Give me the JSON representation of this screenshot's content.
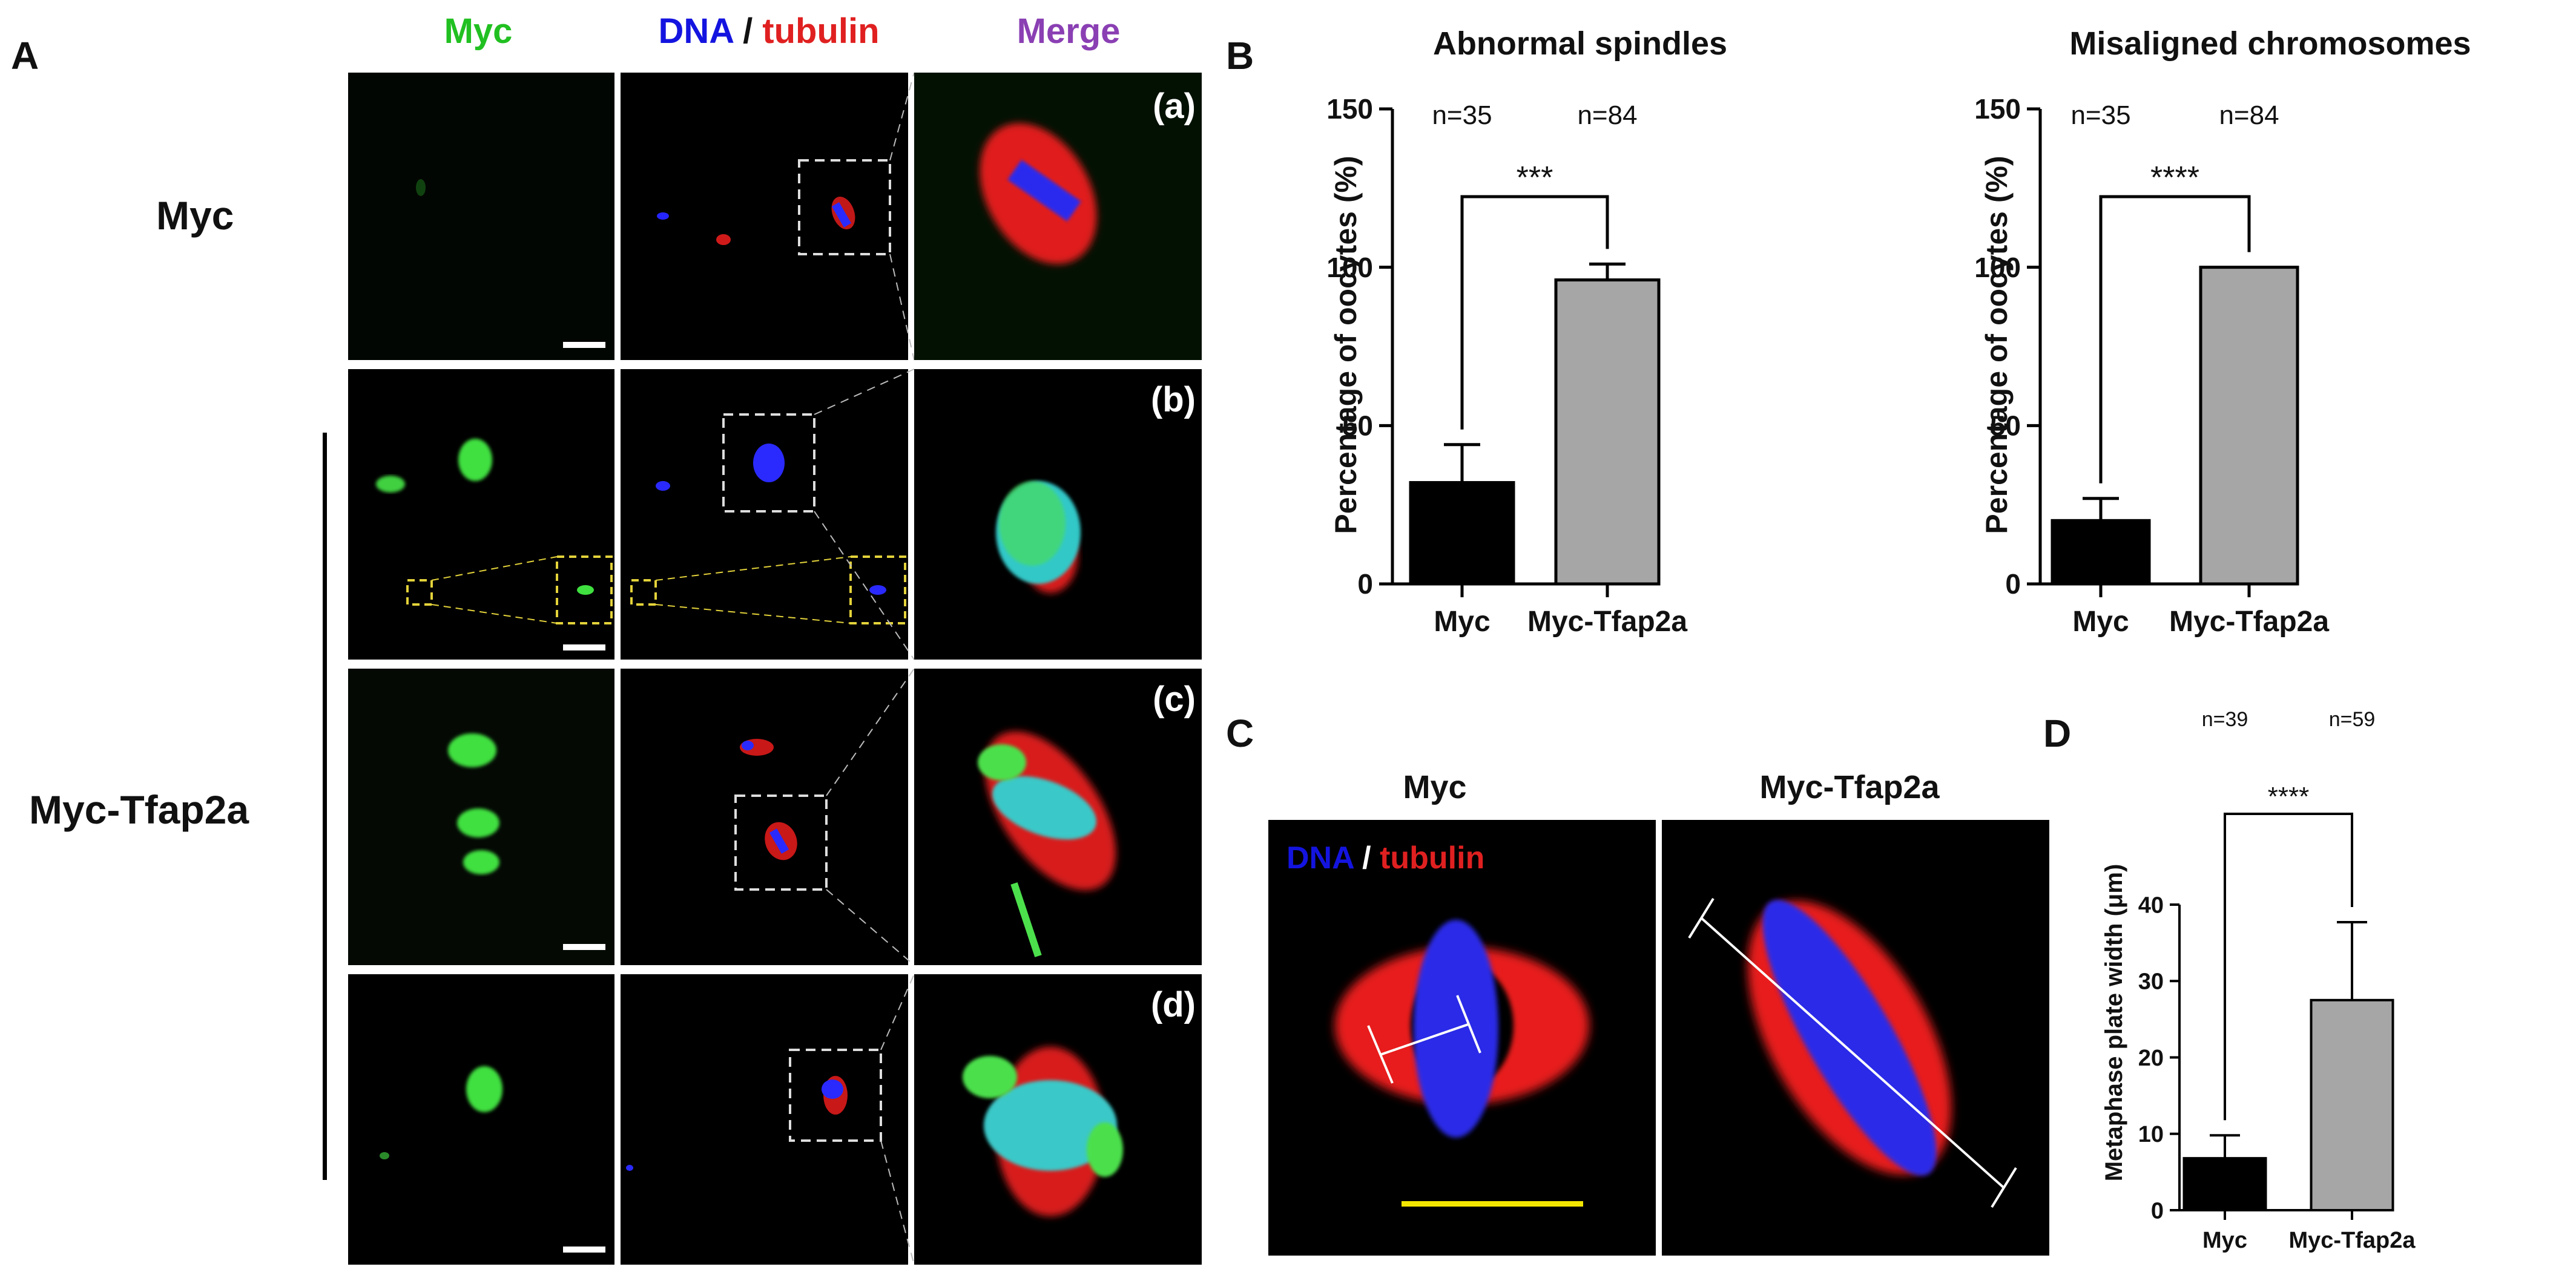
{
  "panelA": {
    "letter": "A",
    "col_headers": [
      {
        "text": "Myc",
        "color": "#21c021"
      },
      {
        "parts": [
          {
            "text": "DNA",
            "color": "#1414e0"
          },
          {
            "text": " / ",
            "color": "#111111"
          },
          {
            "text": "tubulin",
            "color": "#e02020"
          }
        ]
      },
      {
        "text": "Merge",
        "color": "#8a3fb3"
      }
    ],
    "row_labels": [
      "Myc",
      "Myc-Tfap2a"
    ],
    "sublabels": [
      "(a)",
      "(b)",
      "(c)",
      "(d)"
    ]
  },
  "panelB": {
    "letter": "B",
    "charts": [
      {
        "title": "Abnormal spindles",
        "ylabel": "Percentage of oocytes (%)",
        "ylim": [
          0,
          150
        ],
        "yticks": [
          0,
          50,
          100,
          150
        ],
        "categories": [
          "Myc",
          "Myc-Tfap2a"
        ],
        "values": [
          32,
          96
        ],
        "errors": [
          12,
          5
        ],
        "n_labels": [
          "n=35",
          "n=84"
        ],
        "significance": "***",
        "bar_colors": [
          "#000000",
          "#a6a6a6"
        ]
      },
      {
        "title": "Misaligned chromosomes",
        "ylabel": "Percentage of oocytes (%)",
        "ylim": [
          0,
          150
        ],
        "yticks": [
          0,
          50,
          100,
          150
        ],
        "categories": [
          "Myc",
          "Myc-Tfap2a"
        ],
        "values": [
          20,
          100
        ],
        "errors": [
          7,
          0
        ],
        "n_labels": [
          "n=35",
          "n=84"
        ],
        "significance": "****",
        "bar_colors": [
          "#000000",
          "#a6a6a6"
        ]
      }
    ]
  },
  "panelC": {
    "letter": "C",
    "titles": [
      "Myc",
      "Myc-Tfap2a"
    ],
    "stain_parts": [
      {
        "text": "DNA",
        "color": "#1414e0"
      },
      {
        "text": " / ",
        "color": "#ffffff"
      },
      {
        "text": "tubulin",
        "color": "#e02020"
      }
    ],
    "scalebar_color": "#f2e600"
  },
  "panelD": {
    "letter": "D",
    "chart_data": {
      "type": "bar",
      "ylabel": "Metaphase plate width (μm)",
      "ylim": [
        0,
        40
      ],
      "yticks": [
        0,
        10,
        20,
        30,
        40
      ],
      "categories": [
        "Myc",
        "Myc-Tfap2a"
      ],
      "values": [
        6.8,
        27.5
      ],
      "errors": [
        3.0,
        10.2
      ],
      "n_labels": [
        "n=39",
        "n=59"
      ],
      "significance": "****",
      "bar_colors": [
        "#000000",
        "#a6a6a6"
      ]
    }
  }
}
